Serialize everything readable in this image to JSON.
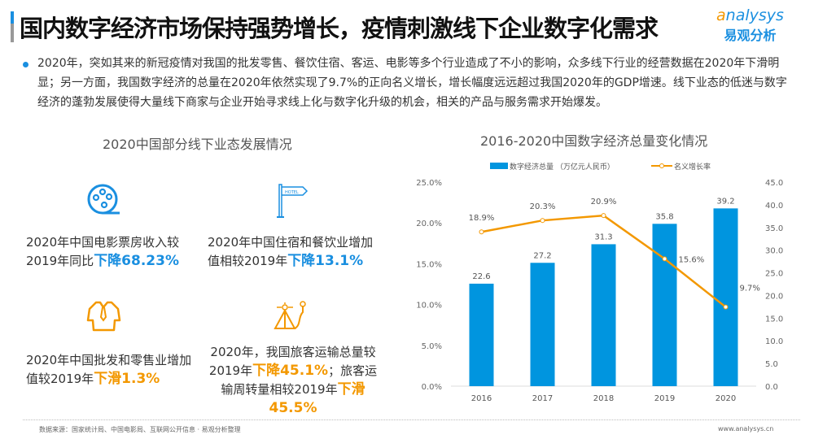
{
  "header": {
    "title": "国内数字经济市场保持强势增长，疫情刺激线下企业数字化需求",
    "logo_en": "analysys",
    "logo_cn": "易观分析"
  },
  "intro": "2020年，突如其来的新冠疫情对我国的批发零售、餐饮住宿、客运、电影等多个行业造成了不小的影响，众多线下行业的经营数据在2020年下滑明显；另一方面，我国数字经济的总量在2020年依然实现了9.7%的正向名义增长，增长幅度远远超过我国2020年的GDP增速。线下业态的低迷与数字经济的蓬勃发展使得大量线下商家与企业开始寻求线上化与数字化升级的机会，相关的产品与服务需求开始爆发。",
  "left": {
    "title": "2020中国部分线下业态发展情况",
    "items": [
      {
        "icon": "film-reel-icon",
        "text": "2020年中国电影票房收入较2019年同比",
        "highlight": "下降68.23%",
        "color": "#1a8fe0"
      },
      {
        "icon": "hotel-sign-icon",
        "text": "2020年中国住宿和餐饮业增加值相较2019年",
        "highlight": "下降13.1%",
        "color": "#1a8fe0"
      },
      {
        "icon": "shirt-tie-icon",
        "text": "2020年中国批发和零售业增加值较2019年",
        "highlight": "下滑1.3%",
        "color": "#f39800"
      },
      {
        "icon": "road-travel-icon",
        "text": "2020年，我国旅客运输总量较2019年",
        "highlight": "下降45.1%",
        "text2": "；旅客运输周转量相较2019年",
        "highlight2": "下滑45.5%",
        "color": "#f39800"
      }
    ]
  },
  "chart_data": {
    "type": "bar",
    "title": "2016-2020中国数字经济总量变化情况",
    "categories": [
      "2016",
      "2017",
      "2018",
      "2019",
      "2020"
    ],
    "series": [
      {
        "name": "数字经济总量 （万亿元人民币）",
        "type": "bar",
        "axis": "right",
        "values": [
          22.6,
          27.2,
          31.3,
          35.8,
          39.2
        ],
        "labels": [
          "22.6",
          "27.2",
          "31.3",
          "35.8",
          "39.2"
        ],
        "color": "#0095df"
      },
      {
        "name": "名义增长率",
        "type": "line",
        "axis": "left",
        "values": [
          18.9,
          20.3,
          20.9,
          15.6,
          9.7
        ],
        "labels": [
          "18.9%",
          "20.3%",
          "20.9%",
          "15.6%",
          "9.7%"
        ],
        "color": "#f39800"
      }
    ],
    "left_axis": {
      "range": [
        0,
        25
      ],
      "ticks": [
        "0.0%",
        "5.0%",
        "10.0%",
        "15.0%",
        "20.0%",
        "25.0%"
      ]
    },
    "right_axis": {
      "range": [
        0,
        45
      ],
      "ticks": [
        "0.0",
        "5.0",
        "10.0",
        "15.0",
        "20.0",
        "25.0",
        "30.0",
        "35.0",
        "40.0",
        "45.0"
      ]
    },
    "legend": "top",
    "grid": false
  },
  "footer": {
    "source": "数据来源：国家统计局、中国电影局、互联网公开信息 · 易观分析整理",
    "url": "www.analysys.cn"
  }
}
